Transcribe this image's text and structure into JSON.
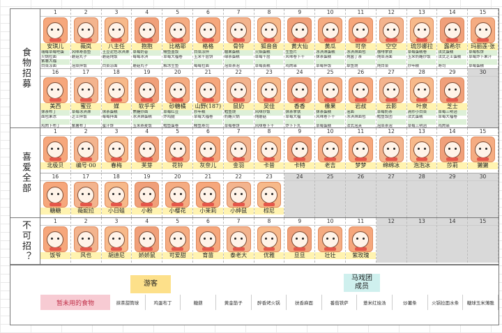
{
  "sections": {
    "recruit": {
      "label": "食物招募",
      "row1": [
        {
          "n": "1",
          "name": "安琪儿",
          "l": [
            "瑞莓草莓吧蛋",
            "火锅拉面",
            "紫薯大福",
            "白菜凉面"
          ]
        },
        {
          "n": "2",
          "name": "薇岚",
          "l": [
            "风味寿喜鱼",
            "蘑菇丸子",
            "",
            "泡菜拌饭"
          ]
        },
        {
          "n": "3",
          "name": "八主任",
          "l": [
            "土豆泥色冰淇淋",
            "蘑菇炖饭",
            "",
            "白菜凉面"
          ]
        },
        {
          "n": "4",
          "name": "抱抱",
          "l": [
            "草莓奶昔",
            "莓莓冰淇",
            "",
            "蘑菇丸子"
          ]
        },
        {
          "n": "5",
          "name": "比格耶",
          "l": [
            "鳗鱼盖饭",
            "草莓大福卷",
            "",
            "解冻生鱼"
          ]
        },
        {
          "n": "6",
          "name": "格格",
          "l": [
            "白菜凉拌",
            "玉米千层饼",
            "",
            "莓莓拉面"
          ]
        },
        {
          "n": "7",
          "name": "骨铃",
          "l": [
            "酸果蛋糕",
            "绿茶蛋糕",
            "",
            "泡菜茶泡"
          ]
        },
        {
          "n": "8",
          "name": "狐音音",
          "l": [
            "火焰蛋糕",
            "草莓千层",
            "",
            "草莓蒸糕"
          ]
        },
        {
          "n": "9",
          "name": "黄大仙",
          "l": [
            "生鱼片",
            "风味卷卜干",
            "",
            "鸡肉串"
          ]
        },
        {
          "n": "10",
          "name": "黄瓜",
          "l": [
            "冰淇淋蛋糕",
            "抹茶蛋糕",
            "",
            "草莓拌饭"
          ]
        },
        {
          "n": "11",
          "name": "可奈",
          "l": [
            "冰淇淋面包",
            "炖菌丁茶",
            "",
            "章鱼烧"
          ]
        },
        {
          "n": "12",
          "name": "空空",
          "l": [
            "咖啡拿铁",
            "炖菜汤面",
            "",
            "炖白菜"
          ]
        },
        {
          "n": "13",
          "name": "琉莎娜拉",
          "l": [
            "草莓蛋糕卷",
            "玉米奶酪炒饭",
            "",
            "炒年糕"
          ]
        },
        {
          "n": "14",
          "name": "露希尔",
          "l": [
            "法式蛋糕",
            "法式芝士蛋糕",
            "",
            "寿司"
          ]
        },
        {
          "n": "15",
          "name": "玛丽莲·张",
          "l": [
            "草莓松饼",
            "草莓炸卜果汁",
            "",
            "草莓蛋糕"
          ]
        }
      ],
      "row2": [
        {
          "n": "16",
          "name": "美西",
          "l": [
            "抹茶布丁",
            "面包果冻",
            "",
            "鸡肉卜布丁"
          ]
        },
        {
          "n": "17",
          "name": "蜜豆",
          "l": [
            "草莓冰淇淋",
            "芝士拌饭",
            "",
            "紫薯布丁"
          ]
        },
        {
          "n": "18",
          "name": "媒",
          "l": [
            "抹茶蛋糕",
            "莓莓拌面",
            "",
            "蜜汁饼"
          ]
        },
        {
          "n": "19",
          "name": "软乎乎",
          "l": [
            "焦糖炒面",
            "冰淇淋蛋糕",
            "",
            "玉米燕麦饭"
          ]
        },
        {
          "n": "20",
          "name": "砂糖橘",
          "l": [
            "草莓红豆",
            "炸鸡腿",
            "",
            "鳕鱼蛋卷"
          ]
        },
        {
          "n": "21",
          "name": "山野(187)",
          "l": [
            "炒年糕",
            "草莓大福卷",
            "",
            "鳗鱼寿司"
          ]
        },
        {
          "n": "22",
          "name": "鼠奶",
          "l": [
            "鳕鱼烧",
            "奶酪火锅",
            "",
            "草莓卷饼"
          ]
        },
        {
          "n": "23",
          "name": "吴佳",
          "l": [
            "风味炒饭",
            "炖蘑菇",
            "",
            "风味卷卜干"
          ]
        },
        {
          "n": "24",
          "name": "香香",
          "l": [
            "抹茶拿铁",
            "草莓大福",
            "",
            "炸卜卜丸"
          ]
        },
        {
          "n": "25",
          "name": "橡果",
          "l": [
            "抹茶蛋糕",
            "风味卷卜干",
            "",
            "草莓蛋糕"
          ]
        },
        {
          "n": "26",
          "name": "岩叔",
          "l": [
            "泡面",
            "冰淇淋面包",
            "",
            "法式泡芙"
          ]
        },
        {
          "n": "27",
          "name": "云影",
          "l": [
            "草莓奶茶",
            "鳕鱼饭团",
            "",
            "泡菜茶泡"
          ]
        },
        {
          "n": "28",
          "name": "叶泉",
          "l": [
            "清炒小白菜",
            "法式蛋糕",
            "",
            "草莓三明治"
          ]
        },
        {
          "n": "29",
          "name": "芝士",
          "l": [
            "草莓三明治",
            "草莓大福卷",
            "",
            "鸡肉串"
          ]
        },
        {
          "n": "30",
          "name": "",
          "l": [
            "",
            "",
            "",
            ""
          ]
        }
      ]
    },
    "liked": {
      "label": "喜爱全部",
      "row1": [
        {
          "n": "1",
          "name": "北极贝"
        },
        {
          "n": "2",
          "name": "编号·00"
        },
        {
          "n": "3",
          "name": "春梅"
        },
        {
          "n": "4",
          "name": "芙芽"
        },
        {
          "n": "5",
          "name": "花铃"
        },
        {
          "n": "6",
          "name": "灰奈儿"
        },
        {
          "n": "7",
          "name": "金羽"
        },
        {
          "n": "8",
          "name": "卡昔"
        },
        {
          "n": "9",
          "name": "卡特"
        },
        {
          "n": "10",
          "name": "老吉"
        },
        {
          "n": "11",
          "name": "梦梦"
        },
        {
          "n": "12",
          "name": "绵绵冰"
        },
        {
          "n": "13",
          "name": "泡泡冰"
        },
        {
          "n": "14",
          "name": "莎莉"
        },
        {
          "n": "15",
          "name": "獭獭"
        }
      ],
      "row2": [
        {
          "n": "16",
          "name": "糖糖"
        },
        {
          "n": "17",
          "name": "薇妮拉"
        },
        {
          "n": "18",
          "name": "小日蛙"
        },
        {
          "n": "19",
          "name": "小粉"
        },
        {
          "n": "20",
          "name": "小樱花"
        },
        {
          "n": "21",
          "name": "小茉莉"
        },
        {
          "n": "22",
          "name": "小绅鼠"
        },
        {
          "n": "23",
          "name": "棕尼"
        },
        {
          "n": "24",
          "name": ""
        },
        {
          "n": "25",
          "name": ""
        },
        {
          "n": "26",
          "name": ""
        },
        {
          "n": "27",
          "name": ""
        },
        {
          "n": "28",
          "name": ""
        },
        {
          "n": "29",
          "name": ""
        },
        {
          "n": "30",
          "name": ""
        }
      ]
    },
    "unrecruitable": {
      "label": "不可招？",
      "row1": [
        {
          "n": "1",
          "name": "饭爷"
        },
        {
          "n": "2",
          "name": "风也"
        },
        {
          "n": "3",
          "name": "胡迪尼"
        },
        {
          "n": "4",
          "name": "娇娇鼠"
        },
        {
          "n": "5",
          "name": "可爱甜"
        },
        {
          "n": "6",
          "name": "育苗"
        },
        {
          "n": "7",
          "name": "泰老大"
        },
        {
          "n": "8",
          "name": "优雅"
        },
        {
          "n": "9",
          "name": "旦旦"
        },
        {
          "n": "10",
          "name": "壮壮"
        },
        {
          "n": "11",
          "name": "紫玫瑰"
        },
        {
          "n": "12",
          "name": ""
        },
        {
          "n": "13",
          "name": ""
        },
        {
          "n": "14",
          "name": ""
        },
        {
          "n": "15",
          "name": ""
        }
      ]
    }
  },
  "bottom": {
    "traveler": "游客",
    "circus": "马戏团成员",
    "unused_label": "暂未用的食物",
    "foods": [
      "抹茶甜筒球",
      "鸡蛋布丁",
      "糖葫",
      "黄金筋子",
      "醉香烤火锅",
      "扶香麻面",
      "番茄铁萨",
      "薏米红烩汤",
      "炒薯条",
      "火锅拉面水条",
      "糖球玉米薄脆"
    ]
  }
}
